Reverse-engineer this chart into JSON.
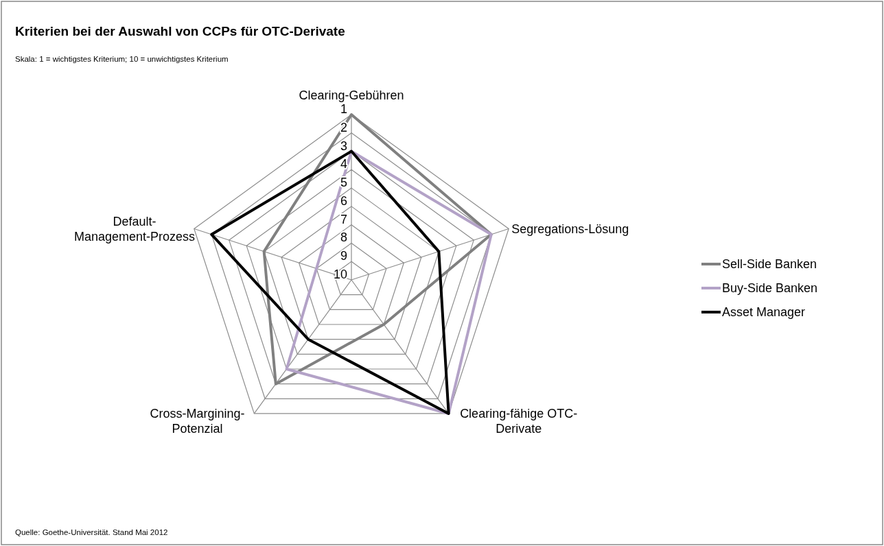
{
  "chart_data": {
    "type": "radar",
    "title": "Kriterien bei der Auswahl von CCPs für OTC-Derivate",
    "subtitle": "Skala: 1 = wichtigstes Kriterium; 10 = unwichtigstes Kriterium",
    "categories": [
      "Clearing-Gebühren",
      "Segregations-Lösung",
      "Clearing-fähige OTC-Derivate",
      "Cross-Margining-Potenzial",
      "Default-Management-Prozess"
    ],
    "series": [
      {
        "name": "Sell-Side Banken",
        "color": "#808080",
        "values": [
          1,
          2,
          7,
          3,
          5
        ]
      },
      {
        "name": "Buy-Side Banken",
        "color": "#b3a2c7",
        "values": [
          3,
          2,
          1,
          4,
          8
        ]
      },
      {
        "name": "Asset Manager",
        "color": "#000000",
        "values": [
          3,
          5,
          1,
          6,
          2
        ]
      }
    ],
    "ylim": [
      10,
      1
    ],
    "yticks": [
      1,
      2,
      3,
      4,
      5,
      6,
      7,
      8,
      9,
      10
    ],
    "grid": true,
    "legend": "right",
    "annotations": [
      "Quelle: Goethe-Universität. Stand Mai 2012"
    ]
  }
}
